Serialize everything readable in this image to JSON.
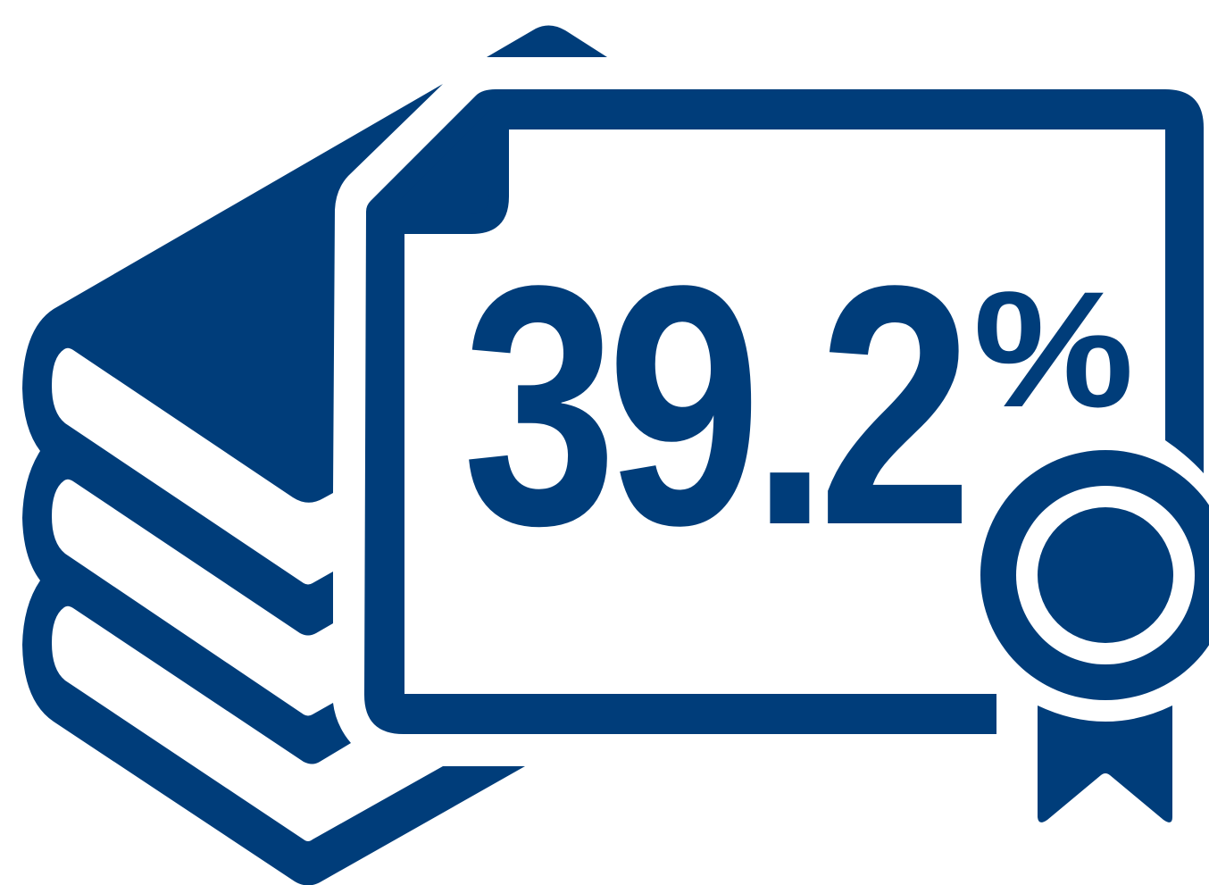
{
  "stat": {
    "number": "39.2",
    "percent_sign": "%"
  },
  "colors": {
    "primary": "#003d7a",
    "background": "#ffffff"
  },
  "icons": [
    "books-stack-icon",
    "certificate-icon",
    "award-ribbon-icon"
  ]
}
